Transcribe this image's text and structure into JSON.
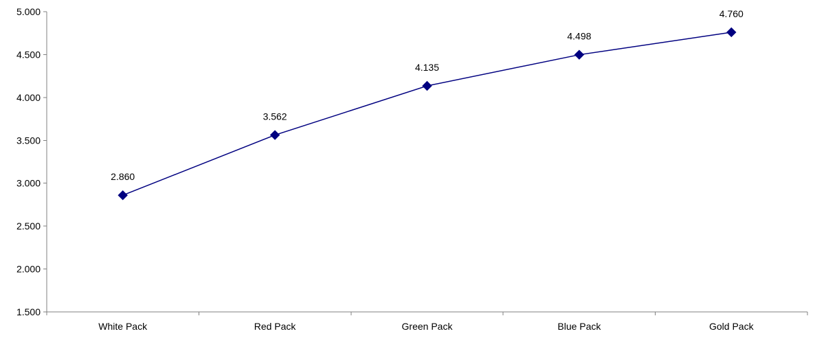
{
  "chart_data": {
    "type": "line",
    "title": "",
    "xlabel": "",
    "ylabel": "",
    "categories": [
      "White Pack",
      "Red Pack",
      "Green Pack",
      "Blue Pack",
      "Gold Pack"
    ],
    "series": [
      {
        "values": [
          2.86,
          3.562,
          4.135,
          4.498,
          4.76
        ],
        "labels": [
          "2.860",
          "3.562",
          "4.135",
          "4.498",
          "4.760"
        ],
        "color": "#000080",
        "marker": "diamond"
      }
    ],
    "ylim": [
      1.5,
      5.0
    ],
    "yticks": [
      1.5,
      2.0,
      2.5,
      3.0,
      3.5,
      4.0,
      4.5,
      5.0
    ],
    "ytick_labels": [
      "1.500",
      "2.000",
      "2.500",
      "3.000",
      "3.500",
      "4.000",
      "4.500",
      "5.000"
    ],
    "grid": false,
    "legend": "none"
  }
}
